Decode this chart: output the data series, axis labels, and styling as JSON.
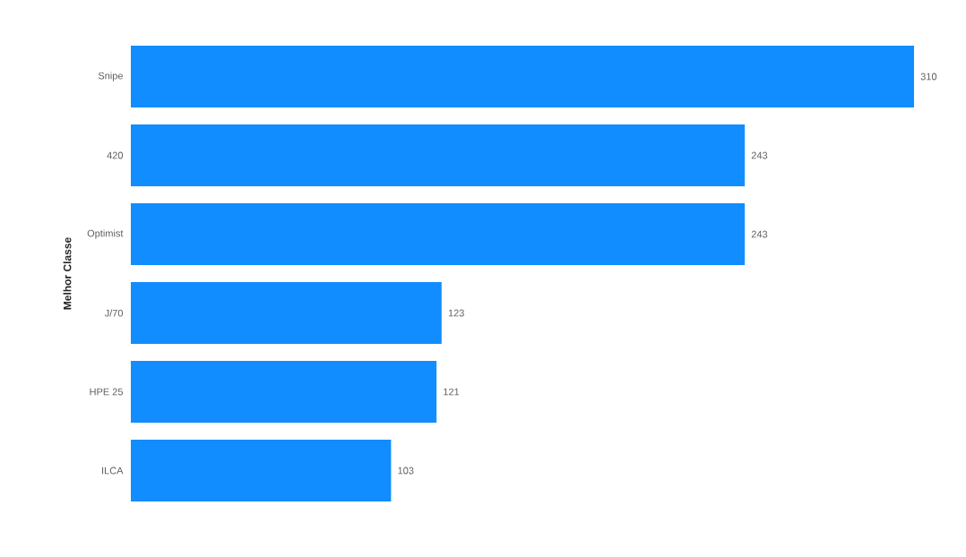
{
  "chart_data": {
    "type": "bar",
    "orientation": "horizontal",
    "ylabel": "Melhor Classe",
    "categories": [
      "Snipe",
      "420",
      "Optimist",
      "J/70",
      "HPE 25",
      "ILCA"
    ],
    "values": [
      310,
      243,
      243,
      123,
      121,
      103
    ],
    "color": "#118dff",
    "data_labels": true,
    "xlim": [
      0,
      310
    ],
    "tick_labels": "y"
  }
}
